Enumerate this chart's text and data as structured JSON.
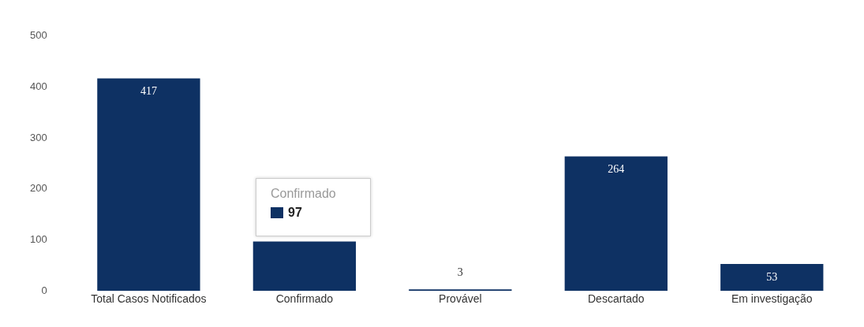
{
  "chart_data": {
    "type": "bar",
    "categories": [
      "Total Casos Notificados",
      "Confirmado",
      "Provável",
      "Descartado",
      "Em investigação"
    ],
    "values": [
      417,
      97,
      3,
      264,
      53
    ],
    "color": "#0e3163",
    "value_labels": [
      "417",
      null,
      "3",
      "264",
      "53"
    ],
    "ylim": [
      0,
      500
    ],
    "yticks": [
      0,
      100,
      200,
      300,
      400,
      500
    ],
    "grid": false,
    "legend": false,
    "annotations": [
      "Confirmado",
      "97"
    ]
  }
}
